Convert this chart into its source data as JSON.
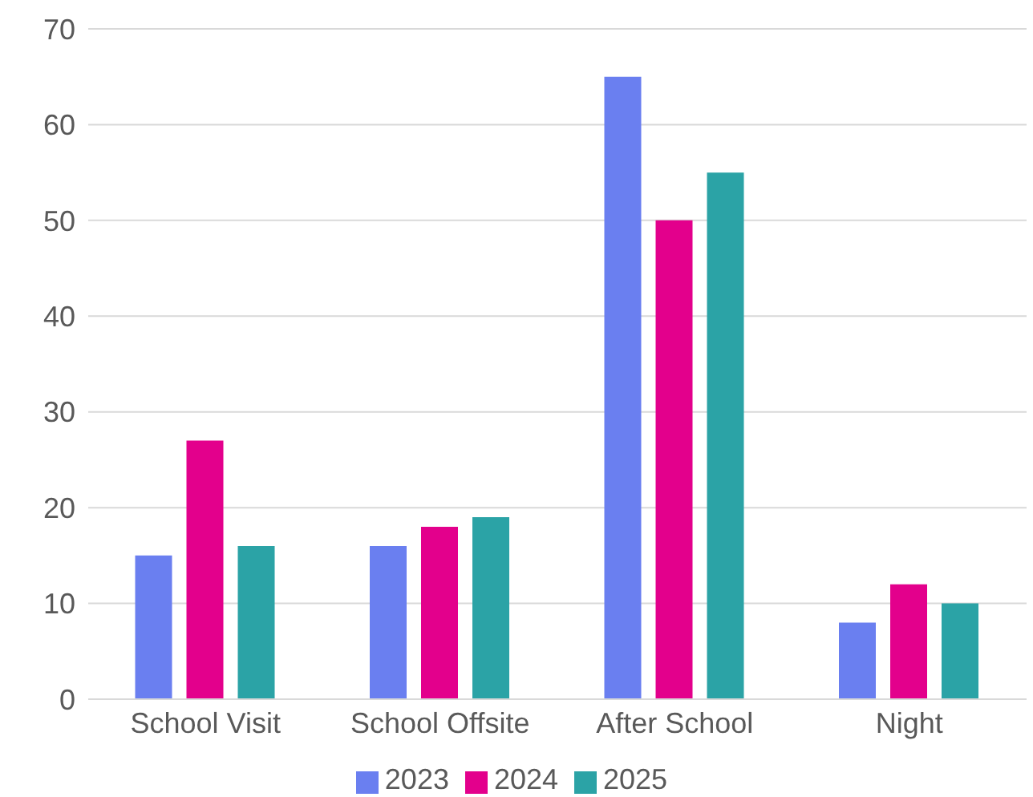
{
  "chart_data": {
    "type": "bar",
    "categories": [
      "School Visit",
      "School Offsite",
      "After School",
      "Night"
    ],
    "series": [
      {
        "name": "2023",
        "color": "#6a7ff0",
        "values": [
          15,
          16,
          65,
          8
        ]
      },
      {
        "name": "2024",
        "color": "#e3008c",
        "values": [
          27,
          18,
          50,
          12
        ]
      },
      {
        "name": "2025",
        "color": "#2ba3a6",
        "values": [
          16,
          19,
          55,
          10
        ]
      }
    ],
    "ylim": [
      0,
      70
    ],
    "yticks": [
      0,
      10,
      20,
      30,
      40,
      50,
      60,
      70
    ],
    "grid": "y",
    "legend": "bottom"
  }
}
